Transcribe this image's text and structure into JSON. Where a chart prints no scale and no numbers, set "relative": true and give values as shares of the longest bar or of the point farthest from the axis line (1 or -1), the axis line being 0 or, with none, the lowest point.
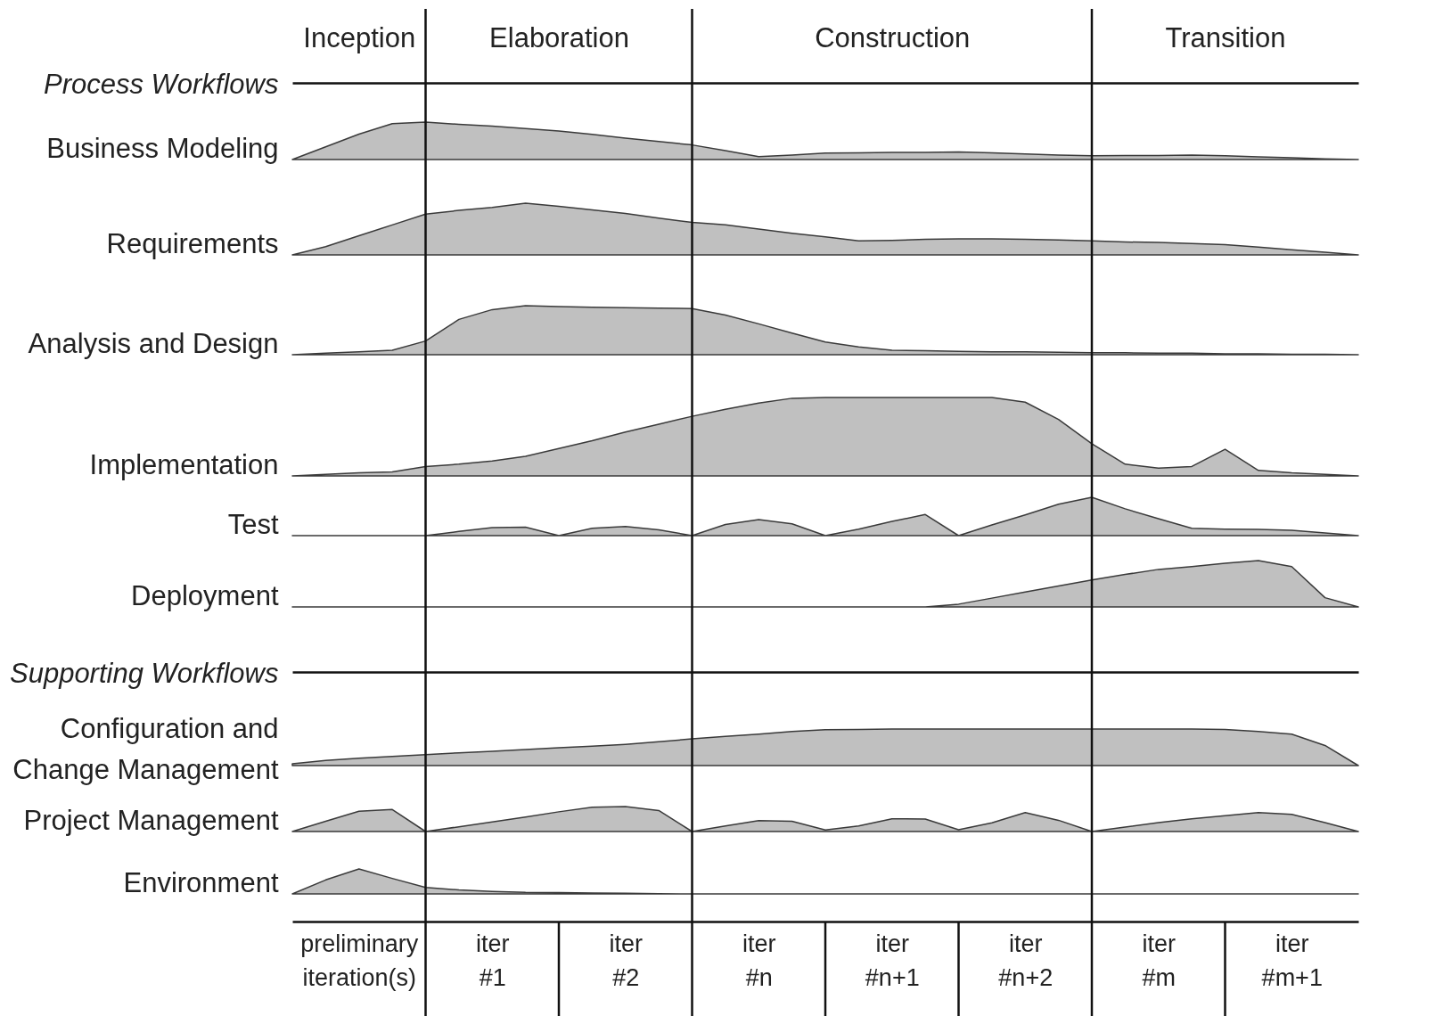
{
  "chart_data": [
    {
      "type": "other",
      "title": "Process Workflows",
      "categories": [
        null,
        null,
        "Inception",
        null,
        null,
        null,
        null,
        null,
        "Elaboration",
        null,
        null,
        null,
        null,
        null,
        null,
        null,
        null,
        null,
        "Construction",
        null,
        null,
        null,
        null,
        null,
        null,
        null,
        null,
        null,
        "Transition",
        null,
        null,
        null,
        null
      ]
    },
    {
      "type": "area",
      "ylabel": "Business Modeling",
      "relative": true,
      "color": "#c0c0c0",
      "categories": [
        null,
        null,
        null,
        null,
        null,
        null,
        null,
        null,
        null,
        null,
        null,
        null,
        null,
        null,
        null,
        null,
        null,
        null,
        null,
        null,
        null,
        null,
        null,
        null,
        null,
        null,
        null,
        null,
        null,
        null,
        null,
        null,
        null
      ],
      "grid": "x",
      "values": [
        0,
        0.34,
        0.68,
        0.96,
        1,
        0.94,
        0.89,
        0.83,
        0.76,
        0.67,
        0.57,
        0.48,
        0.39,
        0.24,
        0.08,
        0.12,
        0.17,
        0.18,
        0.19,
        0.19,
        0.2,
        0.18,
        0.15,
        0.12,
        0.1,
        0.11,
        0.11,
        0.12,
        0.1,
        0.07,
        0.05,
        0.02,
        0
      ]
    },
    {
      "type": "area",
      "ylabel": "Requirements",
      "relative": true,
      "color": "#c0c0c0",
      "categories": [
        null,
        null,
        null,
        null,
        null,
        null,
        null,
        null,
        null,
        null,
        null,
        null,
        null,
        null,
        null,
        null,
        null,
        null,
        null,
        null,
        null,
        null,
        null,
        null,
        null,
        null,
        null,
        null,
        null,
        null,
        null,
        null,
        null
      ],
      "grid": "x",
      "values": [
        0,
        0.16,
        0.37,
        0.58,
        0.79,
        0.86,
        0.92,
        1,
        0.94,
        0.87,
        0.8,
        0.71,
        0.63,
        0.58,
        0.5,
        0.42,
        0.35,
        0.27,
        0.28,
        0.3,
        0.31,
        0.31,
        0.3,
        0.29,
        0.27,
        0.25,
        0.24,
        0.22,
        0.2,
        0.15,
        0.1,
        0.05,
        0
      ]
    },
    {
      "type": "area",
      "ylabel": "Analysis and Design",
      "relative": true,
      "color": "#c0c0c0",
      "categories": [
        null,
        null,
        null,
        null,
        null,
        null,
        null,
        null,
        null,
        null,
        null,
        null,
        null,
        null,
        null,
        null,
        null,
        null,
        null,
        null,
        null,
        null,
        null,
        null,
        null,
        null,
        null,
        null,
        null,
        null,
        null,
        null,
        null
      ],
      "grid": "x",
      "values": [
        0,
        0.03,
        0.06,
        0.09,
        0.28,
        0.72,
        0.92,
        1,
        0.98,
        0.97,
        0.96,
        0.95,
        0.94,
        0.81,
        0.63,
        0.44,
        0.26,
        0.16,
        0.09,
        0.08,
        0.07,
        0.06,
        0.06,
        0.05,
        0.04,
        0.04,
        0.03,
        0.03,
        0.02,
        0.02,
        0.01,
        0.01,
        0
      ]
    },
    {
      "type": "area",
      "ylabel": "Implementation",
      "relative": true,
      "color": "#c0c0c0",
      "categories": [
        null,
        null,
        null,
        null,
        null,
        null,
        null,
        null,
        null,
        null,
        null,
        null,
        null,
        null,
        null,
        null,
        null,
        null,
        null,
        null,
        null,
        null,
        null,
        null,
        null,
        null,
        null,
        null,
        null,
        null,
        null,
        null,
        null
      ],
      "grid": "x",
      "values": [
        0,
        0.02,
        0.04,
        0.05,
        0.12,
        0.15,
        0.19,
        0.25,
        0.35,
        0.45,
        0.56,
        0.66,
        0.76,
        0.85,
        0.93,
        0.99,
        1,
        1,
        1,
        1,
        1,
        1,
        0.94,
        0.72,
        0.41,
        0.15,
        0.1,
        0.12,
        0.34,
        0.07,
        0.04,
        0.02,
        0
      ]
    },
    {
      "type": "area",
      "ylabel": "Test",
      "relative": true,
      "color": "#c0c0c0",
      "categories": [
        null,
        null,
        null,
        null,
        null,
        null,
        null,
        null,
        null,
        null,
        null,
        null,
        null,
        null,
        null,
        null,
        null,
        null,
        null,
        null,
        null,
        null,
        null,
        null,
        null,
        null,
        null,
        null,
        null,
        null,
        null,
        null,
        null
      ],
      "grid": "x",
      "values": [
        0,
        0,
        0,
        0,
        0,
        0.11,
        0.21,
        0.22,
        0,
        0.19,
        0.24,
        0.15,
        0,
        0.29,
        0.42,
        0.31,
        0,
        0.17,
        0.37,
        0.55,
        0,
        0.28,
        0.54,
        0.82,
        1,
        0.7,
        0.44,
        0.19,
        0.17,
        0.16,
        0.14,
        0.07,
        0
      ]
    },
    {
      "type": "area",
      "ylabel": "Deployment",
      "relative": true,
      "color": "#c0c0c0",
      "categories": [
        null,
        null,
        null,
        null,
        null,
        null,
        null,
        null,
        null,
        null,
        null,
        null,
        null,
        null,
        null,
        null,
        null,
        null,
        null,
        null,
        null,
        null,
        null,
        null,
        null,
        null,
        null,
        null,
        null,
        null,
        null,
        null,
        null
      ],
      "grid": "x",
      "values": [
        0,
        0,
        0,
        0,
        0,
        0,
        0,
        0,
        0,
        0,
        0,
        0,
        0,
        0,
        0,
        0,
        0,
        0,
        0,
        0,
        0.06,
        0.19,
        0.32,
        0.45,
        0.58,
        0.7,
        0.81,
        0.87,
        0.94,
        1,
        0.87,
        0.2,
        0
      ]
    },
    {
      "type": "other",
      "title": "Supporting Workflows"
    },
    {
      "type": "area",
      "ylabel": "Configuration and\nChange Management",
      "relative": true,
      "color": "#c0c0c0",
      "categories": [
        null,
        null,
        null,
        null,
        null,
        null,
        null,
        null,
        null,
        null,
        null,
        null,
        null,
        null,
        null,
        null,
        null,
        null,
        null,
        null,
        null,
        null,
        null,
        null,
        null,
        null,
        null,
        null,
        null,
        null,
        null,
        null,
        null
      ],
      "grid": "x",
      "values": [
        0.05,
        0.14,
        0.2,
        0.25,
        0.3,
        0.35,
        0.39,
        0.44,
        0.49,
        0.53,
        0.58,
        0.65,
        0.73,
        0.8,
        0.86,
        0.93,
        0.98,
        0.99,
        1,
        1,
        1,
        1,
        1,
        1,
        1,
        1,
        1,
        1,
        0.99,
        0.93,
        0.86,
        0.55,
        0
      ]
    },
    {
      "type": "area",
      "ylabel": "Project Management",
      "relative": true,
      "color": "#c0c0c0",
      "categories": [
        null,
        null,
        null,
        null,
        null,
        null,
        null,
        null,
        null,
        null,
        null,
        null,
        null,
        null,
        null,
        null,
        null,
        null,
        null,
        null,
        null,
        null,
        null,
        null,
        null,
        null,
        null,
        null,
        null,
        null,
        null,
        null,
        null
      ],
      "grid": "x",
      "values": [
        0,
        0.41,
        0.81,
        0.88,
        0,
        0.19,
        0.38,
        0.58,
        0.79,
        0.97,
        1,
        0.84,
        0,
        0.22,
        0.44,
        0.41,
        0.06,
        0.22,
        0.51,
        0.5,
        0.07,
        0.35,
        0.76,
        0.45,
        0,
        0.18,
        0.36,
        0.51,
        0.63,
        0.76,
        0.69,
        0.36,
        0
      ]
    },
    {
      "type": "area",
      "ylabel": "Environment",
      "relative": true,
      "color": "#c0c0c0",
      "categories": [
        null,
        null,
        null,
        null,
        null,
        null,
        null,
        null,
        null,
        null,
        null,
        null,
        null,
        null,
        null,
        null,
        null,
        null,
        null,
        null,
        null,
        null,
        null,
        null,
        null,
        null,
        null,
        null,
        null,
        null,
        null,
        null,
        null
      ],
      "grid": "x",
      "values": [
        0,
        0.56,
        1,
        0.62,
        0.26,
        0.16,
        0.1,
        0.06,
        0.05,
        0.04,
        0.03,
        0.01,
        0,
        0,
        0,
        0,
        0,
        0,
        0,
        0,
        0,
        0,
        0,
        0,
        0,
        0,
        0,
        0,
        0,
        0,
        0,
        0,
        0
      ]
    },
    {
      "type": "other",
      "categories": [
        null,
        null,
        "preliminary iteration(s)",
        null,
        null,
        null,
        "iter #1",
        null,
        null,
        null,
        "iter #2",
        null,
        null,
        null,
        "iter #n",
        null,
        null,
        null,
        "iter #n+1",
        null,
        null,
        null,
        "iter #n+2",
        null,
        null,
        null,
        "iter #m",
        null,
        null,
        null,
        "iter #m+1",
        null,
        null
      ]
    }
  ]
}
